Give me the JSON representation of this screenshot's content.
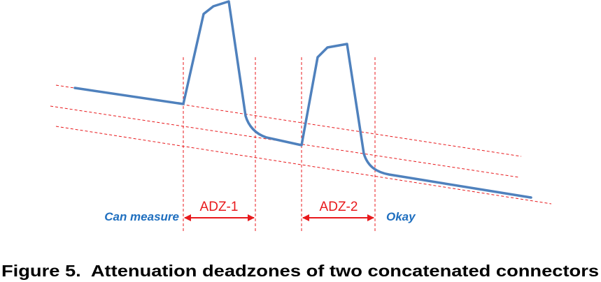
{
  "figure": {
    "caption": "Figure 5.  Attenuation deadzones of two concatenated connectors",
    "labels": {
      "left_note": "Can measure",
      "right_note": "Okay",
      "zone1": "ADZ-1",
      "zone2": "ADZ-2"
    },
    "colors": {
      "trace": "#4f81bd",
      "reference_lines": "#e8191c",
      "zone_text": "#e8191c",
      "note_text": "#1f6fbf",
      "caption_text": "#000000"
    }
  }
}
